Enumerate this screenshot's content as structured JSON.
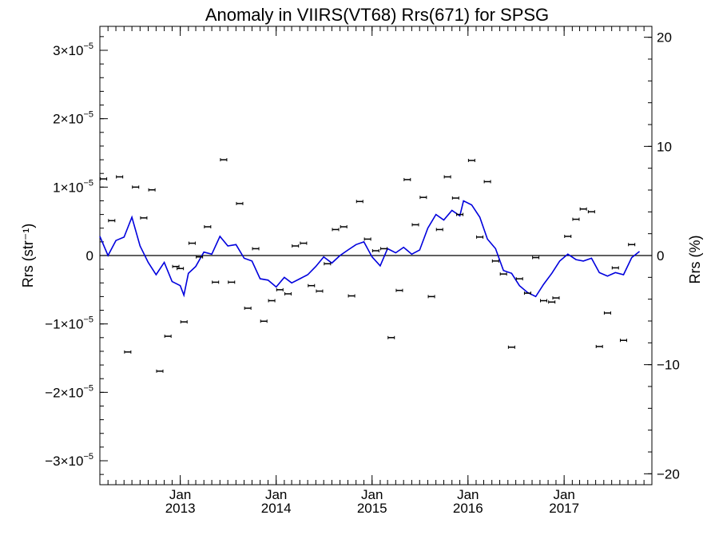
{
  "chart_data": {
    "type": "line",
    "title": "Anomaly in VIIRS(VT68) Rrs(671) for SPSG",
    "ylabel": "Rrs (str⁻¹)",
    "y2label": "Rrs (%)",
    "xlabel": "",
    "x_range": [
      "2012-03-01",
      "2017-12-01"
    ],
    "ylim": [
      -3.35e-05,
      3.35e-05
    ],
    "y2lim": [
      -21,
      21
    ],
    "grid": false,
    "legend": "none",
    "x_ticks": [
      {
        "date": "2013-01-01",
        "month": "Jan",
        "year": "2013"
      },
      {
        "date": "2014-01-01",
        "month": "Jan",
        "year": "2014"
      },
      {
        "date": "2015-01-01",
        "month": "Jan",
        "year": "2015"
      },
      {
        "date": "2016-01-01",
        "month": "Jan",
        "year": "2016"
      },
      {
        "date": "2017-01-01",
        "month": "Jan",
        "year": "2017"
      }
    ],
    "y_ticks": [
      {
        "value": 3e-05,
        "mantissa": "3×10",
        "exp": "−5"
      },
      {
        "value": 2e-05,
        "mantissa": "2×10",
        "exp": "−5"
      },
      {
        "value": 1e-05,
        "mantissa": "1×10",
        "exp": "−5"
      },
      {
        "value": 0,
        "mantissa": "0",
        "exp": ""
      },
      {
        "value": -1e-05,
        "mantissa": "−1×10",
        "exp": "−5"
      },
      {
        "value": -2e-05,
        "mantissa": "−2×10",
        "exp": "−5"
      },
      {
        "value": -3e-05,
        "mantissa": "−3×10",
        "exp": "−5"
      }
    ],
    "y2_ticks": [
      {
        "value": 20,
        "label": "20"
      },
      {
        "value": 10,
        "label": "10"
      },
      {
        "value": 0,
        "label": "0"
      },
      {
        "value": -10,
        "label": "−10"
      },
      {
        "value": -20,
        "label": "−20"
      }
    ],
    "reference_line": {
      "y": 0,
      "color": "#000000"
    },
    "series": [
      {
        "style": "points-with-error-bars",
        "color": "#000000",
        "points": [
          {
            "date": "2012-03-15",
            "y": 1.12e-05
          },
          {
            "date": "2012-04-15",
            "y": 5.1e-06
          },
          {
            "date": "2012-05-15",
            "y": 1.15e-05
          },
          {
            "date": "2012-06-15",
            "y": -1.41e-05
          },
          {
            "date": "2012-07-15",
            "y": 1e-05
          },
          {
            "date": "2012-08-15",
            "y": 5.5e-06
          },
          {
            "date": "2012-09-15",
            "y": 9.6e-06
          },
          {
            "date": "2012-10-15",
            "y": -1.69e-05
          },
          {
            "date": "2012-11-15",
            "y": -1.18e-05
          },
          {
            "date": "2012-12-15",
            "y": -1.6e-06
          },
          {
            "date": "2013-01-01",
            "y": -1.9e-06
          },
          {
            "date": "2013-01-15",
            "y": -9.7e-06
          },
          {
            "date": "2013-02-15",
            "y": 1.8e-06
          },
          {
            "date": "2013-03-15",
            "y": -2e-07
          },
          {
            "date": "2013-04-15",
            "y": 4.2e-06
          },
          {
            "date": "2013-05-15",
            "y": -3.9e-06
          },
          {
            "date": "2013-06-15",
            "y": 1.4e-05
          },
          {
            "date": "2013-07-15",
            "y": -3.9e-06
          },
          {
            "date": "2013-08-15",
            "y": 7.6e-06
          },
          {
            "date": "2013-09-15",
            "y": -7.7e-06
          },
          {
            "date": "2013-10-15",
            "y": 1e-06
          },
          {
            "date": "2013-11-15",
            "y": -9.6e-06
          },
          {
            "date": "2013-12-15",
            "y": -6.6e-06
          },
          {
            "date": "2014-01-15",
            "y": -5e-06
          },
          {
            "date": "2014-02-15",
            "y": -5.6e-06
          },
          {
            "date": "2014-03-15",
            "y": 1.4e-06
          },
          {
            "date": "2014-04-15",
            "y": 1.8e-06
          },
          {
            "date": "2014-05-15",
            "y": -4.4e-06
          },
          {
            "date": "2014-06-15",
            "y": -5.2e-06
          },
          {
            "date": "2014-07-15",
            "y": -1.2e-06
          },
          {
            "date": "2014-08-15",
            "y": 3.8e-06
          },
          {
            "date": "2014-09-15",
            "y": 4.2e-06
          },
          {
            "date": "2014-10-15",
            "y": -5.9e-06
          },
          {
            "date": "2014-11-15",
            "y": 7.9e-06
          },
          {
            "date": "2014-12-15",
            "y": 2.4e-06
          },
          {
            "date": "2015-01-15",
            "y": 7e-07
          },
          {
            "date": "2015-02-15",
            "y": 1e-06
          },
          {
            "date": "2015-03-15",
            "y": -1.2e-05
          },
          {
            "date": "2015-04-15",
            "y": -5.1e-06
          },
          {
            "date": "2015-05-15",
            "y": 1.11e-05
          },
          {
            "date": "2015-06-15",
            "y": 4.5e-06
          },
          {
            "date": "2015-07-15",
            "y": 8.5e-06
          },
          {
            "date": "2015-08-15",
            "y": -6e-06
          },
          {
            "date": "2015-09-15",
            "y": 3.8e-06
          },
          {
            "date": "2015-10-15",
            "y": 1.15e-05
          },
          {
            "date": "2015-11-15",
            "y": 8.4e-06
          },
          {
            "date": "2015-12-01",
            "y": 6e-06
          },
          {
            "date": "2016-01-15",
            "y": 1.39e-05
          },
          {
            "date": "2016-02-15",
            "y": 2.7e-06
          },
          {
            "date": "2016-03-15",
            "y": 1.08e-05
          },
          {
            "date": "2016-04-15",
            "y": -8e-07
          },
          {
            "date": "2016-05-15",
            "y": -2.7e-06
          },
          {
            "date": "2016-06-15",
            "y": -1.34e-05
          },
          {
            "date": "2016-07-15",
            "y": -3.4e-06
          },
          {
            "date": "2016-08-15",
            "y": -5.5e-06
          },
          {
            "date": "2016-09-15",
            "y": -3e-07
          },
          {
            "date": "2016-10-15",
            "y": -6.6e-06
          },
          {
            "date": "2016-11-15",
            "y": -6.8e-06
          },
          {
            "date": "2016-12-01",
            "y": -6.2e-06
          },
          {
            "date": "2017-01-15",
            "y": 2.8e-06
          },
          {
            "date": "2017-02-15",
            "y": 5.3e-06
          },
          {
            "date": "2017-03-15",
            "y": 6.8e-06
          },
          {
            "date": "2017-04-15",
            "y": 6.4e-06
          },
          {
            "date": "2017-05-15",
            "y": -1.33e-05
          },
          {
            "date": "2017-06-15",
            "y": -8.4e-06
          },
          {
            "date": "2017-07-15",
            "y": -1.8e-06
          },
          {
            "date": "2017-08-15",
            "y": -1.24e-05
          },
          {
            "date": "2017-09-15",
            "y": 1.6e-06
          }
        ]
      },
      {
        "style": "line",
        "color": "#0000dd",
        "points": [
          {
            "date": "2012-03-01",
            "y": 2.8e-06
          },
          {
            "date": "2012-04-01",
            "y": 0.0
          },
          {
            "date": "2012-05-01",
            "y": 2.2e-06
          },
          {
            "date": "2012-06-01",
            "y": 2.7e-06
          },
          {
            "date": "2012-07-01",
            "y": 5.6e-06
          },
          {
            "date": "2012-08-01",
            "y": 1.4e-06
          },
          {
            "date": "2012-09-01",
            "y": -1e-06
          },
          {
            "date": "2012-10-01",
            "y": -2.8e-06
          },
          {
            "date": "2012-11-01",
            "y": -1e-06
          },
          {
            "date": "2012-12-01",
            "y": -3.8e-06
          },
          {
            "date": "2013-01-01",
            "y": -4.4e-06
          },
          {
            "date": "2013-01-15",
            "y": -5.8e-06
          },
          {
            "date": "2013-02-01",
            "y": -2.6e-06
          },
          {
            "date": "2013-03-01",
            "y": -1.6e-06
          },
          {
            "date": "2013-04-01",
            "y": 5e-07
          },
          {
            "date": "2013-05-01",
            "y": 2e-07
          },
          {
            "date": "2013-06-01",
            "y": 2.8e-06
          },
          {
            "date": "2013-07-01",
            "y": 1.4e-06
          },
          {
            "date": "2013-08-01",
            "y": 1.6e-06
          },
          {
            "date": "2013-09-01",
            "y": -4e-07
          },
          {
            "date": "2013-10-01",
            "y": -8e-07
          },
          {
            "date": "2013-11-01",
            "y": -3.4e-06
          },
          {
            "date": "2013-12-01",
            "y": -3.6e-06
          },
          {
            "date": "2014-01-01",
            "y": -4.6e-06
          },
          {
            "date": "2014-02-01",
            "y": -3.2e-06
          },
          {
            "date": "2014-03-01",
            "y": -4e-06
          },
          {
            "date": "2014-04-01",
            "y": -3.4e-06
          },
          {
            "date": "2014-05-01",
            "y": -2.8e-06
          },
          {
            "date": "2014-06-01",
            "y": -1.6e-06
          },
          {
            "date": "2014-07-01",
            "y": -2e-07
          },
          {
            "date": "2014-08-01",
            "y": -1.1e-06
          },
          {
            "date": "2014-09-01",
            "y": 0.0
          },
          {
            "date": "2014-10-01",
            "y": 8e-07
          },
          {
            "date": "2014-11-01",
            "y": 1.6e-06
          },
          {
            "date": "2014-12-01",
            "y": 2e-06
          },
          {
            "date": "2015-01-01",
            "y": -2e-07
          },
          {
            "date": "2015-02-01",
            "y": -1.5e-06
          },
          {
            "date": "2015-03-01",
            "y": 1e-06
          },
          {
            "date": "2015-04-01",
            "y": 4e-07
          },
          {
            "date": "2015-05-01",
            "y": 1.2e-06
          },
          {
            "date": "2015-06-01",
            "y": 2e-07
          },
          {
            "date": "2015-07-01",
            "y": 8e-07
          },
          {
            "date": "2015-08-01",
            "y": 4e-06
          },
          {
            "date": "2015-09-01",
            "y": 6e-06
          },
          {
            "date": "2015-10-01",
            "y": 5.2e-06
          },
          {
            "date": "2015-11-01",
            "y": 6.6e-06
          },
          {
            "date": "2015-12-01",
            "y": 5.8e-06
          },
          {
            "date": "2015-12-15",
            "y": 8e-06
          },
          {
            "date": "2016-01-15",
            "y": 7.4e-06
          },
          {
            "date": "2016-02-15",
            "y": 5.6e-06
          },
          {
            "date": "2016-03-15",
            "y": 2.4e-06
          },
          {
            "date": "2016-04-15",
            "y": 1e-06
          },
          {
            "date": "2016-05-15",
            "y": -2.2e-06
          },
          {
            "date": "2016-06-15",
            "y": -2.6e-06
          },
          {
            "date": "2016-07-15",
            "y": -4.4e-06
          },
          {
            "date": "2016-08-15",
            "y": -5.4e-06
          },
          {
            "date": "2016-09-15",
            "y": -6e-06
          },
          {
            "date": "2016-10-15",
            "y": -4.2e-06
          },
          {
            "date": "2016-11-15",
            "y": -2.6e-06
          },
          {
            "date": "2016-12-15",
            "y": -8e-07
          },
          {
            "date": "2017-01-15",
            "y": 2e-07
          },
          {
            "date": "2017-02-15",
            "y": -6e-07
          },
          {
            "date": "2017-03-15",
            "y": -8e-07
          },
          {
            "date": "2017-04-15",
            "y": -4e-07
          },
          {
            "date": "2017-05-15",
            "y": -2.5e-06
          },
          {
            "date": "2017-06-15",
            "y": -3e-06
          },
          {
            "date": "2017-07-15",
            "y": -2.5e-06
          },
          {
            "date": "2017-08-15",
            "y": -2.8e-06
          },
          {
            "date": "2017-09-15",
            "y": -3e-07
          },
          {
            "date": "2017-10-15",
            "y": 6e-07
          }
        ]
      }
    ]
  }
}
